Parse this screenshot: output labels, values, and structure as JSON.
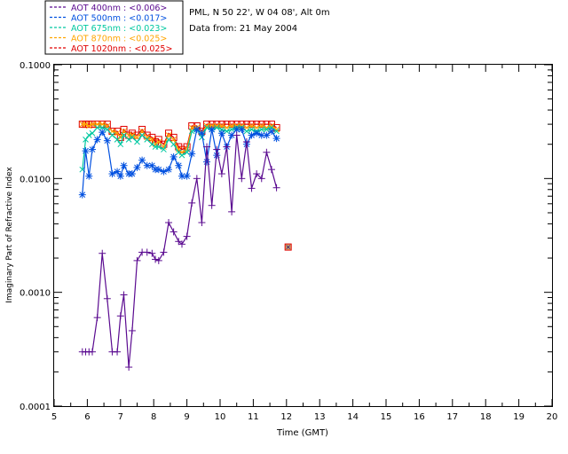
{
  "header": {
    "station": "PML, N 50 22', W 04 08', Alt 0m",
    "date": "Data from: 21 May 2004"
  },
  "chart_data": {
    "type": "line",
    "title": "",
    "xlabel": "Time (GMT)",
    "ylabel": "Imaginary Part of Refractive Index",
    "xlim": [
      5,
      20
    ],
    "ylim": [
      0.0001,
      0.1
    ],
    "yscale": "log",
    "grid": false,
    "legend_position": "top-left",
    "x_ticks": [
      "5",
      "6",
      "7",
      "8",
      "9",
      "10",
      "11",
      "12",
      "13",
      "14",
      "15",
      "16",
      "17",
      "18",
      "19",
      "20"
    ],
    "y_ticks": [
      "0.0001",
      "0.0010",
      "0.0100",
      "0.1000"
    ],
    "series": [
      {
        "name": "AOT 1020nm : <0.025>",
        "color": "#e00000",
        "marker": "square",
        "points": [
          [
            5.85,
            0.03
          ],
          [
            5.95,
            0.03
          ],
          [
            6.05,
            0.03
          ],
          [
            6.15,
            0.03
          ],
          [
            6.3,
            0.03
          ],
          [
            6.45,
            0.03
          ],
          [
            6.6,
            0.03
          ],
          [
            6.75,
            0.026
          ],
          [
            6.9,
            0.026
          ],
          [
            7.0,
            0.023
          ],
          [
            7.1,
            0.027
          ],
          [
            7.25,
            0.024
          ],
          [
            7.35,
            0.025
          ],
          [
            7.5,
            0.024
          ],
          [
            7.65,
            0.027
          ],
          [
            7.8,
            0.024
          ],
          [
            7.95,
            0.023
          ],
          [
            8.05,
            0.021
          ],
          [
            8.15,
            0.022
          ],
          [
            8.3,
            0.02
          ],
          [
            8.45,
            0.025
          ],
          [
            8.6,
            0.023
          ],
          [
            8.75,
            0.019
          ],
          [
            8.85,
            0.018
          ],
          [
            9.0,
            0.019
          ],
          [
            9.15,
            0.029
          ],
          [
            9.3,
            0.029
          ],
          [
            9.45,
            0.026
          ],
          [
            9.6,
            0.03
          ],
          [
            9.75,
            0.03
          ],
          [
            9.9,
            0.03
          ],
          [
            10.05,
            0.03
          ],
          [
            10.2,
            0.03
          ],
          [
            10.35,
            0.03
          ],
          [
            10.5,
            0.03
          ],
          [
            10.65,
            0.03
          ],
          [
            10.8,
            0.03
          ],
          [
            10.95,
            0.03
          ],
          [
            11.1,
            0.03
          ],
          [
            11.25,
            0.03
          ],
          [
            11.4,
            0.03
          ],
          [
            11.55,
            0.03
          ],
          [
            11.7,
            0.028
          ]
        ]
      },
      {
        "name": "AOT 870nm : <0.025>",
        "color": "#ffa500",
        "marker": "cross",
        "points": [
          [
            5.85,
            0.03
          ],
          [
            5.95,
            0.03
          ],
          [
            6.05,
            0.029
          ],
          [
            6.15,
            0.03
          ],
          [
            6.3,
            0.03
          ],
          [
            6.45,
            0.03
          ],
          [
            6.6,
            0.029
          ],
          [
            6.75,
            0.026
          ],
          [
            6.9,
            0.025
          ],
          [
            7.0,
            0.023
          ],
          [
            7.1,
            0.026
          ],
          [
            7.25,
            0.024
          ],
          [
            7.35,
            0.024
          ],
          [
            7.5,
            0.023
          ],
          [
            7.65,
            0.026
          ],
          [
            7.8,
            0.023
          ],
          [
            7.95,
            0.022
          ],
          [
            8.05,
            0.02
          ],
          [
            8.15,
            0.021
          ],
          [
            8.3,
            0.019
          ],
          [
            8.45,
            0.024
          ],
          [
            8.6,
            0.022
          ],
          [
            8.75,
            0.018
          ],
          [
            8.85,
            0.017
          ],
          [
            9.0,
            0.018
          ],
          [
            9.15,
            0.028
          ],
          [
            9.3,
            0.028
          ],
          [
            9.45,
            0.025
          ],
          [
            9.6,
            0.029
          ],
          [
            9.75,
            0.029
          ],
          [
            9.9,
            0.029
          ],
          [
            10.05,
            0.029
          ],
          [
            10.2,
            0.028
          ],
          [
            10.35,
            0.029
          ],
          [
            10.5,
            0.029
          ],
          [
            10.65,
            0.029
          ],
          [
            10.8,
            0.028
          ],
          [
            10.95,
            0.029
          ],
          [
            11.1,
            0.028
          ],
          [
            11.25,
            0.029
          ],
          [
            11.4,
            0.028
          ],
          [
            11.55,
            0.029
          ],
          [
            11.7,
            0.027
          ]
        ]
      },
      {
        "name": "AOT 675nm : <0.023>",
        "color": "#00c8a0",
        "marker": "cross",
        "points": [
          [
            5.85,
            0.012
          ],
          [
            5.95,
            0.022
          ],
          [
            6.05,
            0.024
          ],
          [
            6.15,
            0.025
          ],
          [
            6.3,
            0.028
          ],
          [
            6.45,
            0.028
          ],
          [
            6.6,
            0.027
          ],
          [
            6.75,
            0.024
          ],
          [
            6.9,
            0.022
          ],
          [
            7.0,
            0.02
          ],
          [
            7.1,
            0.024
          ],
          [
            7.25,
            0.022
          ],
          [
            7.35,
            0.023
          ],
          [
            7.5,
            0.021
          ],
          [
            7.65,
            0.024
          ],
          [
            7.8,
            0.022
          ],
          [
            7.95,
            0.02
          ],
          [
            8.05,
            0.019
          ],
          [
            8.15,
            0.019
          ],
          [
            8.3,
            0.018
          ],
          [
            8.45,
            0.022
          ],
          [
            8.6,
            0.02
          ],
          [
            8.75,
            0.017
          ],
          [
            8.85,
            0.016
          ],
          [
            9.0,
            0.017
          ],
          [
            9.15,
            0.026
          ],
          [
            9.3,
            0.027
          ],
          [
            9.45,
            0.023
          ],
          [
            9.6,
            0.028
          ],
          [
            9.75,
            0.027
          ],
          [
            9.9,
            0.028
          ],
          [
            10.05,
            0.027
          ],
          [
            10.2,
            0.026
          ],
          [
            10.35,
            0.027
          ],
          [
            10.5,
            0.028
          ],
          [
            10.65,
            0.028
          ],
          [
            10.8,
            0.026
          ],
          [
            10.95,
            0.027
          ],
          [
            11.1,
            0.026
          ],
          [
            11.25,
            0.027
          ],
          [
            11.4,
            0.027
          ],
          [
            11.55,
            0.028
          ],
          [
            11.7,
            0.026
          ]
        ]
      },
      {
        "name": "AOT 500nm : <0.017>",
        "color": "#0050e0",
        "marker": "asterisk",
        "points": [
          [
            5.85,
            0.0072
          ],
          [
            5.95,
            0.0175
          ],
          [
            6.05,
            0.0105
          ],
          [
            6.15,
            0.018
          ],
          [
            6.3,
            0.022
          ],
          [
            6.45,
            0.0255
          ],
          [
            6.6,
            0.0215
          ],
          [
            6.75,
            0.011
          ],
          [
            6.9,
            0.0115
          ],
          [
            7.0,
            0.0105
          ],
          [
            7.1,
            0.013
          ],
          [
            7.25,
            0.011
          ],
          [
            7.35,
            0.011
          ],
          [
            7.5,
            0.0125
          ],
          [
            7.65,
            0.0145
          ],
          [
            7.8,
            0.013
          ],
          [
            7.95,
            0.013
          ],
          [
            8.05,
            0.012
          ],
          [
            8.15,
            0.012
          ],
          [
            8.3,
            0.0115
          ],
          [
            8.45,
            0.012
          ],
          [
            8.6,
            0.0155
          ],
          [
            8.75,
            0.013
          ],
          [
            8.85,
            0.0105
          ],
          [
            9.0,
            0.0105
          ],
          [
            9.15,
            0.0165
          ],
          [
            9.3,
            0.027
          ],
          [
            9.45,
            0.025
          ],
          [
            9.6,
            0.014
          ],
          [
            9.75,
            0.027
          ],
          [
            9.9,
            0.016
          ],
          [
            10.05,
            0.025
          ],
          [
            10.2,
            0.019
          ],
          [
            10.35,
            0.024
          ],
          [
            10.5,
            0.027
          ],
          [
            10.65,
            0.027
          ],
          [
            10.8,
            0.02
          ],
          [
            10.95,
            0.024
          ],
          [
            11.1,
            0.025
          ],
          [
            11.25,
            0.024
          ],
          [
            11.4,
            0.024
          ],
          [
            11.55,
            0.026
          ],
          [
            11.7,
            0.0225
          ]
        ]
      },
      {
        "name": "AOT 400nm : <0.006>",
        "color": "#5a0a90",
        "marker": "plus",
        "points": [
          [
            5.85,
            0.0003
          ],
          [
            5.95,
            0.0003
          ],
          [
            6.05,
            0.0003
          ],
          [
            6.15,
            0.0003
          ],
          [
            6.3,
            0.0006
          ],
          [
            6.45,
            0.0022
          ],
          [
            6.6,
            0.00088
          ],
          [
            6.75,
            0.0003
          ],
          [
            6.9,
            0.0003
          ],
          [
            7.0,
            0.00062
          ],
          [
            7.1,
            0.00095
          ],
          [
            7.25,
            0.00022
          ],
          [
            7.35,
            0.00046
          ],
          [
            7.5,
            0.0019
          ],
          [
            7.65,
            0.00225
          ],
          [
            7.8,
            0.00225
          ],
          [
            7.95,
            0.0022
          ],
          [
            8.05,
            0.00195
          ],
          [
            8.15,
            0.0019
          ],
          [
            8.3,
            0.00225
          ],
          [
            8.45,
            0.0041
          ],
          [
            8.6,
            0.0034
          ],
          [
            8.75,
            0.0028
          ],
          [
            8.85,
            0.00265
          ],
          [
            9.0,
            0.0031
          ],
          [
            9.15,
            0.0061
          ],
          [
            9.3,
            0.01
          ],
          [
            9.45,
            0.0041
          ],
          [
            9.6,
            0.019
          ],
          [
            9.75,
            0.0058
          ],
          [
            9.9,
            0.018
          ],
          [
            10.05,
            0.011
          ],
          [
            10.2,
            0.019
          ],
          [
            10.35,
            0.0051
          ],
          [
            10.5,
            0.024
          ],
          [
            10.65,
            0.01
          ],
          [
            10.8,
            0.021
          ],
          [
            10.95,
            0.0082
          ],
          [
            11.1,
            0.011
          ],
          [
            11.25,
            0.01
          ],
          [
            11.4,
            0.017
          ],
          [
            11.55,
            0.012
          ],
          [
            11.7,
            0.0083
          ]
        ]
      }
    ],
    "isolated_point": {
      "x": 12.05,
      "y": 0.0025,
      "color": "#e00000",
      "marker": "square"
    }
  }
}
